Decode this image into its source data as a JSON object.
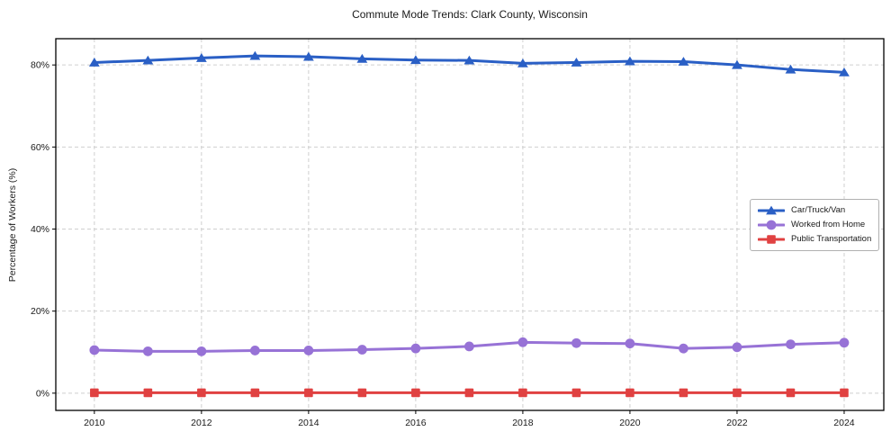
{
  "chart_data": {
    "type": "line",
    "title": "Commute Mode Trends: Clark County, Wisconsin",
    "xlabel": "",
    "ylabel": "Percentage of Workers (%)",
    "x": [
      2010,
      2011,
      2012,
      2013,
      2014,
      2015,
      2016,
      2017,
      2018,
      2019,
      2020,
      2021,
      2022,
      2023,
      2024
    ],
    "x_tick_values": [
      2010,
      2012,
      2014,
      2016,
      2018,
      2020,
      2022,
      2024
    ],
    "x_tick_labels": [
      "2010",
      "2012",
      "2014",
      "2016",
      "2018",
      "2020",
      "2022",
      "2024"
    ],
    "y_tick_values": [
      0,
      20,
      40,
      60,
      80
    ],
    "y_tick_labels": [
      "0%",
      "20%",
      "40%",
      "60%",
      "80%"
    ],
    "xlim": [
      2009.28,
      2024.74
    ],
    "ylim": [
      -4.2,
      86.4
    ],
    "grid": true,
    "grid_style": "dashed",
    "legend_position": "center-right",
    "series": [
      {
        "name": "Car/Truck/Van",
        "color": "#2a5fc5",
        "marker": "triangle",
        "values": [
          80.6,
          81.1,
          81.7,
          82.2,
          82.0,
          81.5,
          81.2,
          81.1,
          80.4,
          80.6,
          80.9,
          80.8,
          80.0,
          78.9,
          78.2
        ]
      },
      {
        "name": "Worked from Home",
        "color": "#9772d6",
        "marker": "circle",
        "values": [
          10.5,
          10.2,
          10.2,
          10.4,
          10.4,
          10.6,
          10.9,
          11.4,
          12.4,
          12.2,
          12.1,
          10.9,
          11.2,
          11.9,
          12.3
        ]
      },
      {
        "name": "Public Transportation",
        "color": "#e04141",
        "marker": "square",
        "values": [
          0.1,
          0.1,
          0.1,
          0.1,
          0.1,
          0.1,
          0.1,
          0.1,
          0.1,
          0.1,
          0.1,
          0.1,
          0.1,
          0.1,
          0.1
        ]
      }
    ],
    "style": {
      "grid_color": "#cfcfcf",
      "frame_color": "#000000",
      "tick_color": "#000000",
      "text_color": "#1a1a1a",
      "background": "#ffffff"
    }
  }
}
